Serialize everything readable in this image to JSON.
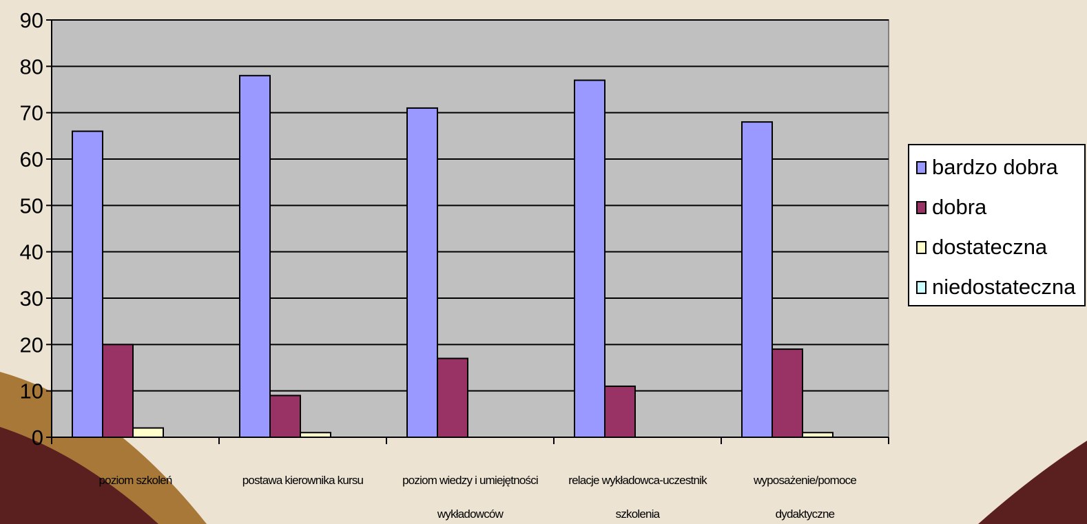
{
  "chart_data": {
    "type": "bar",
    "categories": [
      [
        "poziom szkoleń"
      ],
      [
        "postawa kierownika kursu"
      ],
      [
        "poziom wiedzy i umiejętności",
        "wykładowców"
      ],
      [
        "relacje wykładowca-uczestnik",
        "szkolenia"
      ],
      [
        "wyposażenie/pomoce",
        "dydaktyczne"
      ]
    ],
    "series": [
      {
        "name": "bardzo dobra",
        "color": "#9999ff",
        "values": [
          66,
          78,
          71,
          77,
          68
        ]
      },
      {
        "name": "dobra",
        "color": "#993366",
        "values": [
          20,
          9,
          17,
          11,
          19
        ]
      },
      {
        "name": "dostateczna",
        "color": "#ffffcc",
        "values": [
          2,
          1,
          0,
          0,
          1
        ]
      },
      {
        "name": "niedostateczna",
        "color": "#ccffff",
        "values": [
          0,
          0,
          0,
          0,
          0
        ]
      }
    ],
    "ylim": [
      0,
      90
    ],
    "yticks": [
      0,
      10,
      20,
      30,
      40,
      50,
      60,
      70,
      80,
      90
    ],
    "grid": true,
    "legend": "right",
    "plot_background": "#c0c0c0"
  }
}
